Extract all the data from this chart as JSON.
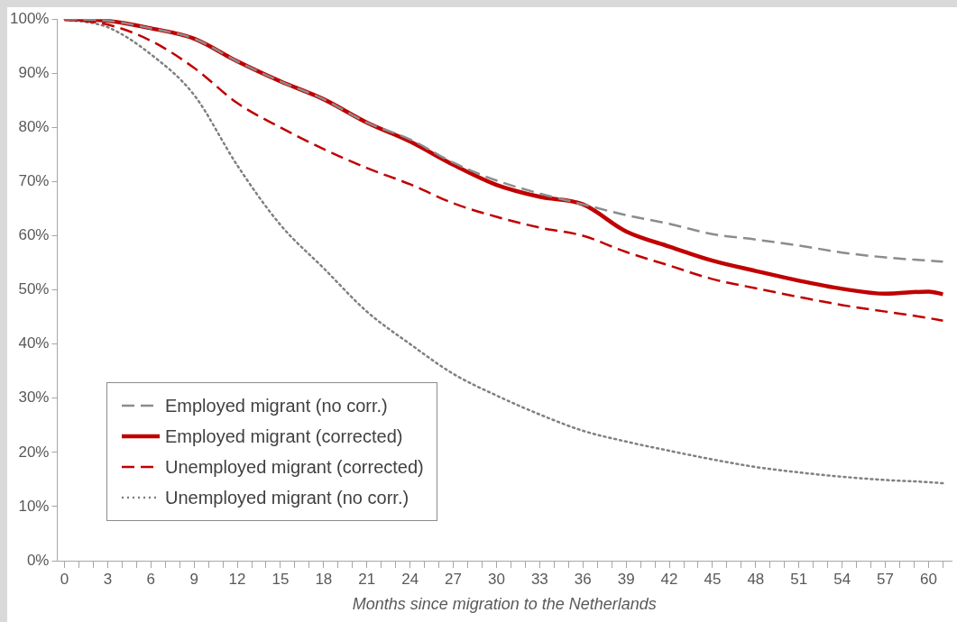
{
  "chart_data": {
    "type": "line",
    "xlabel": "Months since migration to the Netherlands",
    "x": [
      0,
      3,
      6,
      9,
      12,
      15,
      18,
      21,
      24,
      27,
      30,
      33,
      36,
      39,
      42,
      45,
      48,
      51,
      54,
      57,
      60,
      61
    ],
    "xlim": [
      -0.5,
      61.6
    ],
    "xticks": [
      0,
      {
        "value": 1,
        "label": null
      },
      {
        "value": 2,
        "label": null
      },
      3,
      {
        "value": 4,
        "label": null
      },
      {
        "value": 5,
        "label": null
      },
      6,
      {
        "value": 7,
        "label": null
      },
      {
        "value": 8,
        "label": null
      },
      9,
      {
        "value": 10,
        "label": null
      },
      {
        "value": 11,
        "label": null
      },
      12,
      {
        "value": 13,
        "label": null
      },
      {
        "value": 14,
        "label": null
      },
      15,
      {
        "value": 16,
        "label": null
      },
      {
        "value": 17,
        "label": null
      },
      18,
      {
        "value": 19,
        "label": null
      },
      {
        "value": 20,
        "label": null
      },
      21,
      {
        "value": 22,
        "label": null
      },
      {
        "value": 23,
        "label": null
      },
      24,
      {
        "value": 25,
        "label": null
      },
      {
        "value": 26,
        "label": null
      },
      27,
      {
        "value": 28,
        "label": null
      },
      {
        "value": 29,
        "label": null
      },
      30,
      {
        "value": 31,
        "label": null
      },
      {
        "value": 32,
        "label": null
      },
      33,
      {
        "value": 34,
        "label": null
      },
      {
        "value": 35,
        "label": null
      },
      36,
      {
        "value": 37,
        "label": null
      },
      {
        "value": 38,
        "label": null
      },
      39,
      {
        "value": 40,
        "label": null
      },
      {
        "value": 41,
        "label": null
      },
      42,
      {
        "value": 43,
        "label": null
      },
      {
        "value": 44,
        "label": null
      },
      45,
      {
        "value": 46,
        "label": null
      },
      {
        "value": 47,
        "label": null
      },
      48,
      {
        "value": 49,
        "label": null
      },
      {
        "value": 50,
        "label": null
      },
      51,
      {
        "value": 52,
        "label": null
      },
      {
        "value": 53,
        "label": null
      },
      54,
      {
        "value": 55,
        "label": null
      },
      {
        "value": 56,
        "label": null
      },
      57,
      {
        "value": 58,
        "label": null
      },
      {
        "value": 59,
        "label": null
      },
      60,
      {
        "value": 61,
        "label": null
      }
    ],
    "ylim": [
      0,
      100
    ],
    "yticks": [
      {
        "value": 0,
        "label": "0%"
      },
      {
        "value": 10,
        "label": "10%"
      },
      {
        "value": 20,
        "label": "20%"
      },
      {
        "value": 30,
        "label": "30%"
      },
      {
        "value": 40,
        "label": "40%"
      },
      {
        "value": 50,
        "label": "50%"
      },
      {
        "value": 60,
        "label": "60%"
      },
      {
        "value": 70,
        "label": "70%"
      },
      {
        "value": 80,
        "label": "80%"
      },
      {
        "value": 90,
        "label": "90%"
      },
      {
        "value": 100,
        "label": "100%"
      }
    ],
    "grid": false,
    "legend": "bottom left",
    "marker": "none",
    "series": [
      {
        "name": "Employed migrant (no corr.)",
        "color": "#8c8c8c",
        "line_style": "dashed",
        "values": [
          100,
          99.7,
          98.3,
          96.4,
          92.2,
          88.5,
          85.2,
          80.9,
          77.8,
          73.5,
          70.2,
          67.8,
          65.8,
          63.8,
          62.2,
          60.3,
          59.3,
          58.2,
          56.9,
          56.0,
          55.4,
          55.2
        ]
      },
      {
        "name": "Employed migrant (corrected)",
        "color": "#c00000",
        "line_style": "solid",
        "values": [
          100,
          99.7,
          98.3,
          96.4,
          92.2,
          88.5,
          85.2,
          80.9,
          77.4,
          73.1,
          69.4,
          67.2,
          65.8,
          60.8,
          58.0,
          55.4,
          53.5,
          51.7,
          50.2,
          49.3,
          49.7,
          49.2
        ]
      },
      {
        "name": "Unemployed migrant (corrected)",
        "color": "#c00000",
        "line_style": "dashed",
        "values": [
          100,
          99,
          96,
          91,
          84.5,
          80,
          76,
          72.5,
          69.5,
          66,
          63.5,
          61.5,
          60,
          57,
          54.5,
          52,
          50.3,
          48.7,
          47.2,
          46,
          44.8,
          44.3
        ]
      },
      {
        "name": "Unemployed migrant (no corr.)",
        "color": "#808080",
        "line_style": "dotted",
        "values": [
          100,
          98.5,
          93.5,
          86,
          73,
          62,
          54,
          46,
          40,
          34.5,
          30.5,
          27,
          24,
          22,
          20.3,
          18.7,
          17.3,
          16.3,
          15.5,
          14.9,
          14.5,
          14.3
        ]
      }
    ]
  }
}
